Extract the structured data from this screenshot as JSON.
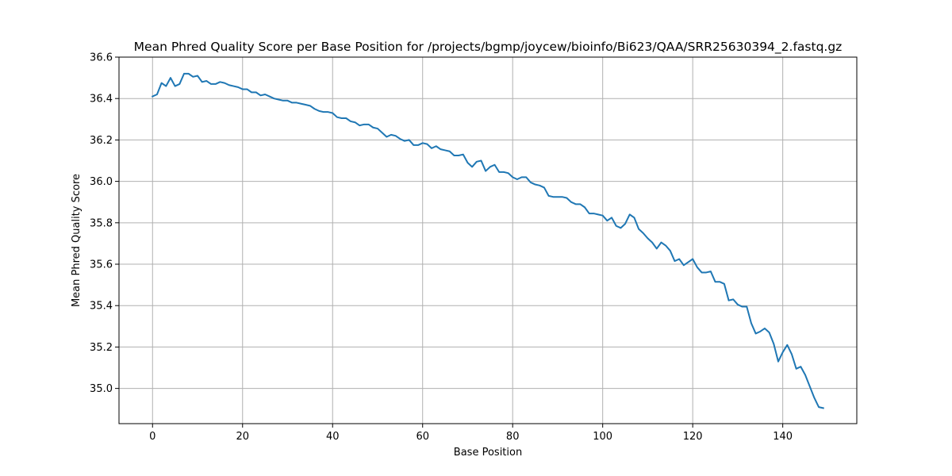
{
  "chart_data": {
    "type": "line",
    "title": "Mean Phred Quality Score per Base Position for /projects/bgmp/joycew/bioinfo/Bi623/QAA/SRR25630394_2.fastq.gz",
    "xlabel": "Base Position",
    "ylabel": "Mean Phred Quality Score",
    "xlim": [
      -7.45,
      156.45
    ],
    "ylim": [
      34.83,
      36.6
    ],
    "x_ticks": [
      0,
      20,
      40,
      60,
      80,
      100,
      120,
      140
    ],
    "x_tick_labels": [
      "0",
      "20",
      "40",
      "60",
      "80",
      "100",
      "120",
      "140"
    ],
    "y_ticks": [
      35.0,
      35.2,
      35.4,
      35.6,
      35.8,
      36.0,
      36.2,
      36.4,
      36.6
    ],
    "y_tick_labels": [
      "35.0",
      "35.2",
      "35.4",
      "35.6",
      "35.8",
      "36.0",
      "36.2",
      "36.4",
      "36.6"
    ],
    "grid": true,
    "line_color": "#1f77b4",
    "series": [
      {
        "x_start": 0,
        "values": [
          36.41,
          36.42,
          36.475,
          36.46,
          36.5,
          36.46,
          36.47,
          36.52,
          36.52,
          36.505,
          36.51,
          36.48,
          36.485,
          36.47,
          36.47,
          36.48,
          36.475,
          36.465,
          36.46,
          36.455,
          36.445,
          36.445,
          36.43,
          36.43,
          36.415,
          36.42,
          36.41,
          36.4,
          36.395,
          36.39,
          36.39,
          36.38,
          36.38,
          36.375,
          36.37,
          36.365,
          36.35,
          36.34,
          36.335,
          36.335,
          36.33,
          36.31,
          36.305,
          36.305,
          36.29,
          36.285,
          36.27,
          36.275,
          36.275,
          36.26,
          36.255,
          36.235,
          36.215,
          36.225,
          36.22,
          36.205,
          36.195,
          36.2,
          36.175,
          36.175,
          36.185,
          36.18,
          36.16,
          36.17,
          36.155,
          36.15,
          36.145,
          36.125,
          36.125,
          36.13,
          36.09,
          36.07,
          36.095,
          36.1,
          36.05,
          36.07,
          36.08,
          36.045,
          36.045,
          36.04,
          36.02,
          36.01,
          36.02,
          36.02,
          35.995,
          35.985,
          35.98,
          35.97,
          35.93,
          35.925,
          35.925,
          35.925,
          35.92,
          35.9,
          35.89,
          35.89,
          35.875,
          35.845,
          35.845,
          35.84,
          35.835,
          35.81,
          35.825,
          35.785,
          35.775,
          35.795,
          35.84,
          35.825,
          35.77,
          35.75,
          35.725,
          35.705,
          35.675,
          35.705,
          35.69,
          35.665,
          35.615,
          35.625,
          35.595,
          35.61,
          35.625,
          35.585,
          35.56,
          35.56,
          35.565,
          35.515,
          35.515,
          35.505,
          35.425,
          35.43,
          35.405,
          35.395,
          35.395,
          35.315,
          35.265,
          35.275,
          35.29,
          35.27,
          35.215,
          35.13,
          35.175,
          35.21,
          35.165,
          35.095,
          35.105,
          35.065,
          35.01,
          34.955,
          34.91,
          34.905
        ]
      }
    ]
  }
}
